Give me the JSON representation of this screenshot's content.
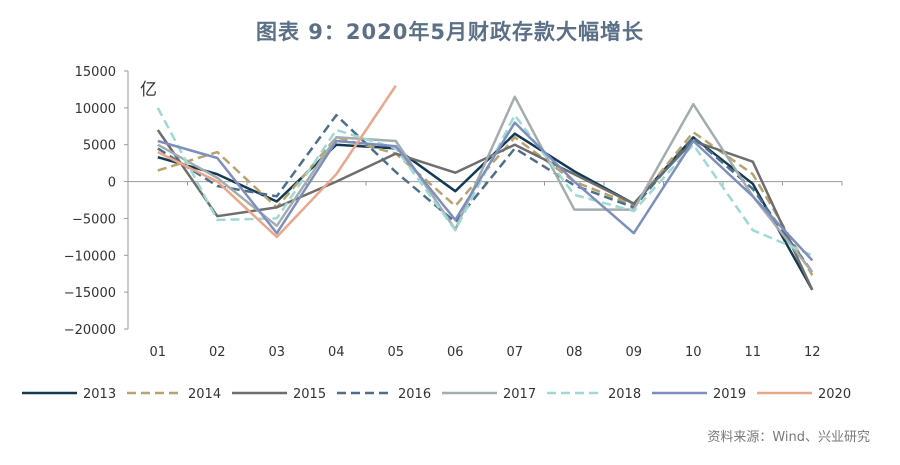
{
  "title": "图表 9：2020年5月财政存款大幅增长",
  "source": "资料来源：Wind、兴业研究",
  "chart_data": {
    "type": "line",
    "title": "图表 9：2020年5月财政存款大幅增长",
    "unit": "亿",
    "categories": [
      "01",
      "02",
      "03",
      "04",
      "05",
      "06",
      "07",
      "08",
      "09",
      "10",
      "11",
      "12"
    ],
    "ylim": [
      -20000,
      15000
    ],
    "yticks": [
      15000,
      10000,
      5000,
      0,
      -5000,
      -10000,
      -15000,
      -20000
    ],
    "ytick_labels": [
      "15000",
      "10000",
      "5000",
      "0",
      "−5000",
      "−10000",
      "−15000",
      "−20000"
    ],
    "grid": false,
    "legend_position": "bottom",
    "series": [
      {
        "name": "2013",
        "color": "#143a52",
        "dash": "solid",
        "values": [
          3300,
          1000,
          -2700,
          5000,
          4500,
          -1300,
          6500,
          1400,
          -3000,
          6000,
          -300,
          -14700
        ]
      },
      {
        "name": "2014",
        "color": "#b8a36e",
        "dash": "dashed",
        "values": [
          1500,
          4000,
          -3500,
          6000,
          3800,
          -3300,
          6000,
          0,
          -3200,
          6700,
          1000,
          -12700
        ]
      },
      {
        "name": "2015",
        "color": "#6e6e6e",
        "dash": "solid",
        "values": [
          7000,
          -4700,
          -3500,
          0,
          3800,
          1200,
          5000,
          1000,
          -3000,
          5500,
          2700,
          -14700
        ]
      },
      {
        "name": "2016",
        "color": "#4e6f8a",
        "dash": "dashed",
        "values": [
          4500,
          -600,
          -2000,
          9000,
          1300,
          -5500,
          4500,
          -500,
          -3500,
          6000,
          -1000,
          -12300
        ]
      },
      {
        "name": "2017",
        "color": "#a4adae",
        "dash": "solid",
        "values": [
          5000,
          500,
          -6000,
          6000,
          5500,
          -6500,
          11500,
          -3800,
          -3800,
          10500,
          -2000,
          -12300
        ]
      },
      {
        "name": "2018",
        "color": "#9ed9d4",
        "dash": "dashed",
        "values": [
          10000,
          -5200,
          -5000,
          7000,
          4500,
          -6600,
          9000,
          -1800,
          -4000,
          5000,
          -6600,
          -10000
        ]
      },
      {
        "name": "2019",
        "color": "#7e8fbd",
        "dash": "solid",
        "values": [
          5500,
          3200,
          -7000,
          5500,
          4800,
          -5200,
          8000,
          0,
          -7000,
          5500,
          -2000,
          -10700
        ]
      },
      {
        "name": "2020",
        "color": "#e9a78b",
        "dash": "solid",
        "values": [
          4000,
          0,
          -7500,
          1000,
          13000,
          null,
          null,
          null,
          null,
          null,
          null,
          null
        ]
      }
    ]
  }
}
